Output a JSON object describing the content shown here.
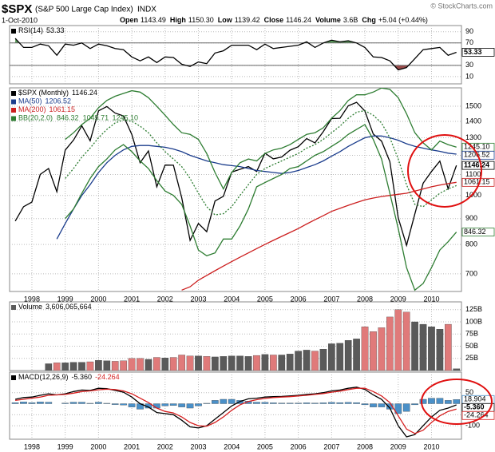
{
  "header": {
    "symbol": "$SPX",
    "name": "(S&P 500 Large Cap Index)",
    "exchange": "INDX",
    "date": "1-Oct-2010",
    "source": "© StockCharts.com",
    "quote": [
      {
        "label": "Open",
        "value": "1143.49"
      },
      {
        "label": "High",
        "value": "1150.30"
      },
      {
        "label": "Low",
        "value": "1139.42"
      },
      {
        "label": "Close",
        "value": "1146.24"
      },
      {
        "label": "Volume",
        "value": "3.6B"
      },
      {
        "label": "Chg",
        "value": "+5.04 (+0.44%)"
      }
    ]
  },
  "chart_data": [
    {
      "type": "line",
      "x": [
        1997.5,
        1997.75,
        1998,
        1998.25,
        1998.5,
        1998.75,
        1999,
        1999.25,
        1999.5,
        1999.75,
        2000,
        2000.25,
        2000.5,
        2000.75,
        2001,
        2001.25,
        2001.5,
        2001.75,
        2002,
        2002.25,
        2002.5,
        2002.75,
        2003,
        2003.25,
        2003.5,
        2003.75,
        2004,
        2004.25,
        2004.5,
        2004.75,
        2005,
        2005.25,
        2005.5,
        2005.75,
        2006,
        2006.25,
        2006.5,
        2006.75,
        2007,
        2007.25,
        2007.5,
        2007.75,
        2008,
        2008.25,
        2008.5,
        2008.75,
        2009,
        2009.25,
        2009.5,
        2009.75,
        2010,
        2010.25,
        2010.5,
        2010.75
      ],
      "xlim": [
        1997.33,
        2010.9
      ],
      "xticks": [
        1998,
        1999,
        2000,
        2001,
        2002,
        2003,
        2004,
        2005,
        2006,
        2007,
        2008,
        2009,
        2010
      ],
      "show_xtick_labels": false,
      "ylim": [
        -3,
        101
      ],
      "yticks": [
        10,
        30,
        70,
        90
      ],
      "ref_lines": [
        70,
        30
      ],
      "fill_colors": [
        "#5a9a5a",
        "#9a4a4a"
      ],
      "value_tags": true,
      "series": [
        {
          "name": "RSI(14)",
          "color": "#000000",
          "last": 53.33,
          "values": [
            78,
            62,
            62,
            68,
            65,
            48,
            68,
            66,
            70,
            60,
            68,
            65,
            60,
            58,
            45,
            38,
            45,
            35,
            45,
            44,
            32,
            28,
            36,
            33,
            52,
            56,
            66,
            66,
            66,
            58,
            68,
            60,
            62,
            64,
            66,
            72,
            62,
            70,
            75,
            72,
            74,
            70,
            62,
            45,
            44,
            38,
            22,
            26,
            42,
            58,
            60,
            62,
            48,
            53.33
          ]
        }
      ]
    },
    {
      "type": "line",
      "log": true,
      "x": [
        1997.5,
        1997.75,
        1998,
        1998.25,
        1998.5,
        1998.75,
        1999,
        1999.25,
        1999.5,
        1999.75,
        2000,
        2000.25,
        2000.5,
        2000.75,
        2001,
        2001.25,
        2001.5,
        2001.75,
        2002,
        2002.25,
        2002.5,
        2002.75,
        2003,
        2003.25,
        2003.5,
        2003.75,
        2004,
        2004.25,
        2004.5,
        2004.75,
        2005,
        2005.25,
        2005.5,
        2005.75,
        2006,
        2006.25,
        2006.5,
        2006.75,
        2007,
        2007.25,
        2007.5,
        2007.75,
        2008,
        2008.25,
        2008.5,
        2008.75,
        2009,
        2009.25,
        2009.5,
        2009.75,
        2010,
        2010.25,
        2010.5,
        2010.75
      ],
      "xlim": [
        1997.33,
        2010.9
      ],
      "xticks": [
        1998,
        1999,
        2000,
        2001,
        2002,
        2003,
        2004,
        2005,
        2006,
        2007,
        2008,
        2009,
        2010
      ],
      "show_xtick_labels": true,
      "ylim": [
        646,
        1631
      ],
      "yticks": [
        700,
        800,
        900,
        1000,
        1100,
        1200,
        1300,
        1400,
        1500
      ],
      "value_tags": true,
      "series": [
        {
          "name": "$SPX (Monthly)",
          "color": "#000000",
          "last": 1146.24,
          "values": [
            890,
            950,
            970,
            1100,
            1130,
            1017,
            1229,
            1286,
            1372,
            1282,
            1469,
            1498,
            1454,
            1436,
            1320,
            1160,
            1224,
            1040,
            1148,
            1147,
            990,
            815,
            880,
            848,
            975,
            996,
            1112,
            1126,
            1140,
            1115,
            1212,
            1181,
            1191,
            1228,
            1248,
            1295,
            1270,
            1336,
            1418,
            1420,
            1503,
            1527,
            1468,
            1322,
            1280,
            1166,
            903,
            797,
            919,
            1057,
            1115,
            1169,
            1031,
            1146.24
          ]
        },
        {
          "name": "MA(50)",
          "color": "#1a3c8c",
          "last": 1206.52,
          "values": [
            null,
            null,
            null,
            null,
            null,
            820,
            880,
            940,
            1000,
            1050,
            1110,
            1160,
            1200,
            1230,
            1250,
            1255,
            1255,
            1250,
            1245,
            1235,
            1220,
            1200,
            1185,
            1170,
            1160,
            1150,
            1145,
            1140,
            1130,
            1120,
            1115,
            1110,
            1105,
            1110,
            1120,
            1135,
            1150,
            1170,
            1195,
            1220,
            1250,
            1275,
            1300,
            1310,
            1310,
            1300,
            1285,
            1265,
            1250,
            1240,
            1230,
            1222,
            1212,
            1206.52
          ]
        },
        {
          "name": "MA(200)",
          "color": "#cc1f1f",
          "last": 1061.15,
          "values": [
            null,
            null,
            null,
            null,
            null,
            null,
            null,
            null,
            null,
            null,
            null,
            null,
            null,
            null,
            null,
            null,
            null,
            null,
            null,
            null,
            650,
            660,
            680,
            695,
            710,
            725,
            740,
            755,
            770,
            785,
            800,
            815,
            830,
            845,
            860,
            878,
            895,
            912,
            930,
            943,
            956,
            968,
            980,
            988,
            995,
            1000,
            1005,
            1010,
            1020,
            1030,
            1040,
            1048,
            1055,
            1061.15
          ]
        }
      ],
      "bands": {
        "name": "BB(20,2.0)",
        "color": "#2e7d32",
        "lower": {
          "last": 846.32,
          "values": [
            null,
            null,
            null,
            null,
            null,
            null,
            900,
            940,
            1010,
            1080,
            1140,
            1180,
            1230,
            1260,
            1220,
            1170,
            1130,
            1070,
            1020,
            1000,
            960,
            870,
            780,
            760,
            770,
            820,
            820,
            870,
            940,
            1040,
            1060,
            1080,
            1100,
            1130,
            1140,
            1170,
            1200,
            1220,
            1250,
            1280,
            1320,
            1350,
            1380,
            1290,
            1180,
            1010,
            860,
            720,
            650,
            670,
            720,
            780,
            810,
            846.32
          ]
        },
        "mid": {
          "last": 1045.71,
          "values": [
            null,
            null,
            null,
            null,
            null,
            null,
            1080,
            1130,
            1190,
            1240,
            1300,
            1350,
            1390,
            1410,
            1400,
            1370,
            1330,
            1270,
            1220,
            1180,
            1140,
            1080,
            1010,
            950,
            915,
            920,
            950,
            1000,
            1050,
            1100,
            1130,
            1150,
            1170,
            1190,
            1210,
            1240,
            1260,
            1290,
            1330,
            1370,
            1420,
            1460,
            1470,
            1440,
            1390,
            1300,
            1180,
            1050,
            960,
            950,
            980,
            1010,
            1030,
            1045.71
          ]
        },
        "upper": {
          "last": {
            "value": 1245.1,
            "label": "1245.10"
          },
          "values": [
            null,
            null,
            null,
            null,
            null,
            null,
            1290,
            1330,
            1380,
            1420,
            1490,
            1540,
            1570,
            1590,
            1610,
            1600,
            1560,
            1500,
            1440,
            1380,
            1330,
            1320,
            1290,
            1210,
            1110,
            1030,
            1110,
            1160,
            1180,
            1170,
            1210,
            1230,
            1240,
            1260,
            1290,
            1320,
            1330,
            1360,
            1420,
            1470,
            1540,
            1580,
            1580,
            1600,
            1630,
            1620,
            1560,
            1450,
            1330,
            1270,
            1230,
            1280,
            1260,
            1245.1
          ]
        }
      }
    },
    {
      "type": "bar",
      "x": [
        1997.5,
        1997.75,
        1998,
        1998.25,
        1998.5,
        1998.75,
        1999,
        1999.25,
        1999.5,
        1999.75,
        2000,
        2000.25,
        2000.5,
        2000.75,
        2001,
        2001.25,
        2001.5,
        2001.75,
        2002,
        2002.25,
        2002.5,
        2002.75,
        2003,
        2003.25,
        2003.5,
        2003.75,
        2004,
        2004.25,
        2004.5,
        2004.75,
        2005,
        2005.25,
        2005.5,
        2005.75,
        2006,
        2006.25,
        2006.5,
        2006.75,
        2007,
        2007.25,
        2007.5,
        2007.75,
        2008,
        2008.25,
        2008.5,
        2008.75,
        2009,
        2009.25,
        2009.5,
        2009.75,
        2010,
        2010.25,
        2010.5,
        2010.75
      ],
      "xlim": [
        1997.33,
        2010.9
      ],
      "xticks": [
        1998,
        1999,
        2000,
        2001,
        2002,
        2003,
        2004,
        2005,
        2006,
        2007,
        2008,
        2009,
        2010
      ],
      "show_xtick_labels": false,
      "ylim": [
        0,
        141
      ],
      "yticks": [
        {
          "value": 25,
          "label": "25B"
        },
        {
          "value": 50,
          "label": "50B"
        },
        {
          "value": 75,
          "label": "75B"
        },
        {
          "value": 100,
          "label": "100B"
        },
        {
          "value": 125,
          "label": "125B"
        }
      ],
      "value_tags": false,
      "series": [
        {
          "name": "Volume",
          "up_color": "#e07a7a",
          "down_color": "#5a5a5a",
          "last": {
            "value": 3.606065664,
            "label": "3,606,065,664"
          },
          "values": [
            null,
            null,
            null,
            null,
            14,
            16,
            16,
            17,
            17,
            18,
            21,
            20,
            19,
            20,
            25,
            25,
            23,
            27,
            26,
            27,
            32,
            30,
            30,
            29,
            28,
            29,
            30,
            30,
            29,
            31,
            33,
            32,
            32,
            34,
            40,
            42,
            40,
            44,
            55,
            56,
            62,
            65,
            90,
            80,
            88,
            110,
            125,
            120,
            100,
            95,
            90,
            85,
            95,
            3.606065664
          ]
        }
      ]
    },
    {
      "type": "line",
      "x": [
        1997.5,
        1997.75,
        1998,
        1998.25,
        1998.5,
        1998.75,
        1999,
        1999.25,
        1999.5,
        1999.75,
        2000,
        2000.25,
        2000.5,
        2000.75,
        2001,
        2001.25,
        2001.5,
        2001.75,
        2002,
        2002.25,
        2002.5,
        2002.75,
        2003,
        2003.25,
        2003.5,
        2003.75,
        2004,
        2004.25,
        2004.5,
        2004.75,
        2005,
        2005.25,
        2005.5,
        2005.75,
        2006,
        2006.25,
        2006.5,
        2006.75,
        2007,
        2007.25,
        2007.5,
        2007.75,
        2008,
        2008.25,
        2008.5,
        2008.75,
        2009,
        2009.25,
        2009.5,
        2009.75,
        2010,
        2010.25,
        2010.5,
        2010.75
      ],
      "xlim": [
        1997.33,
        2010.9
      ],
      "xticks": [
        1998,
        1999,
        2000,
        2001,
        2002,
        2003,
        2004,
        2005,
        2006,
        2007,
        2008,
        2009,
        2010
      ],
      "show_xtick_labels": true,
      "ylim": [
        -161,
        143
      ],
      "yticks": [
        50,
        -50,
        -100
      ],
      "value_tags": true,
      "series": [
        {
          "type": "bar",
          "color": "#4a90c8",
          "last": 18.904,
          "values": [
            5,
            8,
            5,
            8,
            7,
            0,
            3,
            7,
            7,
            2,
            7,
            2,
            -4,
            -6,
            -15,
            -25,
            -20,
            -20,
            -10,
            -8,
            -15,
            -20,
            -10,
            2,
            15,
            20,
            20,
            15,
            12,
            7,
            6,
            4,
            3,
            3,
            3,
            4,
            3,
            4,
            6,
            5,
            6,
            5,
            -5,
            -15,
            -15,
            -25,
            -45,
            -35,
            -5,
            20,
            25,
            25,
            15,
            18.904
          ]
        },
        {
          "name": "MACD(12,26,9)",
          "color": "#000000",
          "last": {
            "value": -5.36,
            "label": "-5.360"
          },
          "values": [
            20,
            28,
            30,
            38,
            45,
            40,
            45,
            55,
            62,
            60,
            70,
            68,
            60,
            52,
            30,
            0,
            -15,
            -40,
            -45,
            -50,
            -75,
            -105,
            -110,
            -100,
            -70,
            -40,
            -10,
            10,
            22,
            25,
            30,
            32,
            33,
            35,
            38,
            42,
            45,
            50,
            58,
            62,
            70,
            75,
            65,
            40,
            20,
            -20,
            -100,
            -150,
            -140,
            -100,
            -60,
            -30,
            -20,
            -5.36
          ]
        },
        {
          "color": "#d62020",
          "last": -24.264,
          "values": [
            15,
            20,
            25,
            30,
            38,
            40,
            42,
            48,
            55,
            58,
            63,
            66,
            64,
            58,
            45,
            25,
            5,
            -20,
            -35,
            -42,
            -60,
            -85,
            -100,
            -102,
            -85,
            -60,
            -30,
            -5,
            10,
            18,
            24,
            28,
            30,
            32,
            35,
            38,
            42,
            46,
            52,
            57,
            64,
            70,
            70,
            55,
            35,
            5,
            -55,
            -115,
            -135,
            -120,
            -85,
            -55,
            -35,
            -24.264
          ]
        }
      ]
    }
  ]
}
